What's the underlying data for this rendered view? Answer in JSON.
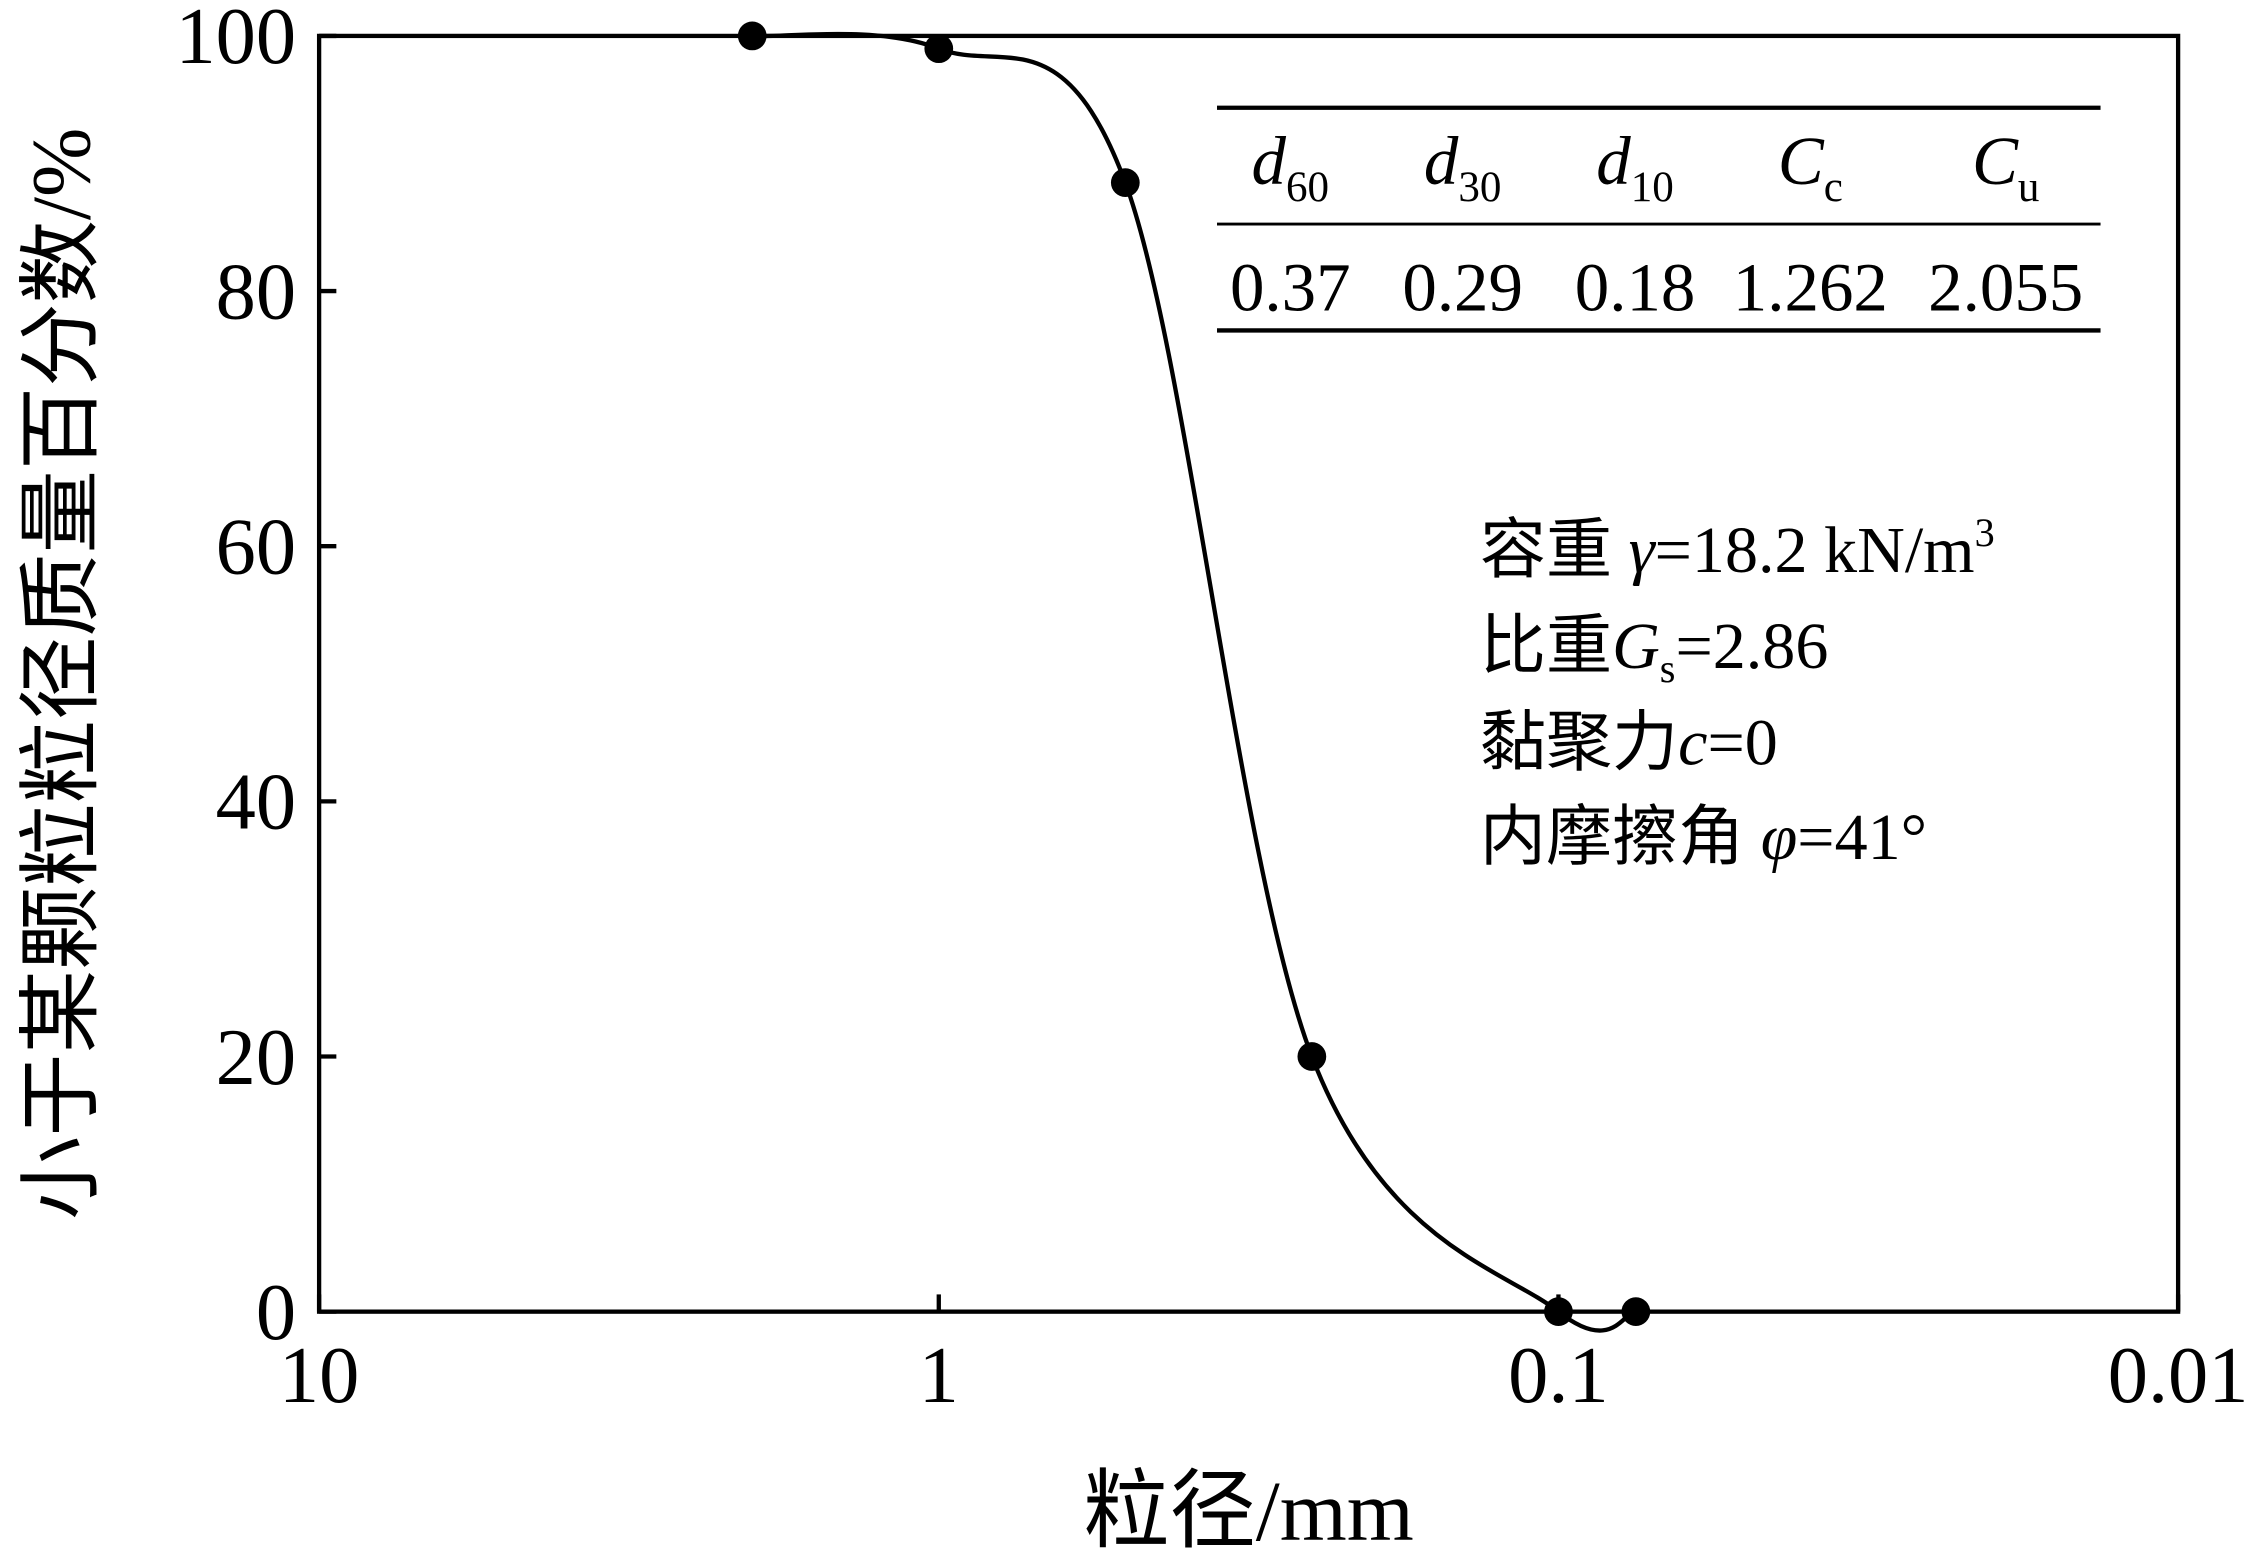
{
  "chart_data": {
    "type": "line",
    "x_label": "粒径/mm",
    "y_label": "小于某颗粒粒径质量百分数/%",
    "x": [
      2.0,
      1.0,
      0.5,
      0.25,
      0.1,
      0.075
    ],
    "series": [
      {
        "color": "#000000",
        "values": [
          100,
          99,
          88.5,
          20,
          0,
          0
        ]
      }
    ],
    "xlim": [
      10,
      0.01
    ],
    "xlog": true,
    "xticks": [
      10,
      1,
      0.1,
      0.01
    ],
    "ylim": [
      0,
      100
    ],
    "yticks": [
      0,
      20,
      40,
      60,
      80,
      100
    ],
    "grid": false,
    "table": {
      "headers": [
        {
          "symbol": "d",
          "sub": "60"
        },
        {
          "symbol": "d",
          "sub": "30"
        },
        {
          "symbol": "d",
          "sub": "10"
        },
        {
          "symbol": "C",
          "sub": "c"
        },
        {
          "symbol": "C",
          "sub": "u"
        }
      ],
      "values": [
        0.37,
        0.29,
        0.18,
        1.262,
        2.055
      ]
    },
    "annotations": [
      [
        {
          "text": "容重 "
        },
        {
          "text": "γ",
          "italic": true
        },
        {
          "text": "=18.2 kN/m"
        },
        {
          "text": "3",
          "sup": true
        }
      ],
      [
        {
          "text": "比重"
        },
        {
          "text": "G",
          "italic": true
        },
        {
          "text": "s",
          "sub": true
        },
        {
          "text": "=2.86"
        }
      ],
      [
        {
          "text": "黏聚力"
        },
        {
          "text": "c",
          "italic": true
        },
        {
          "text": "=0"
        }
      ],
      [
        {
          "text": "内摩擦角 "
        },
        {
          "text": "φ",
          "italic": true
        },
        {
          "text": "=41°"
        }
      ]
    ]
  }
}
